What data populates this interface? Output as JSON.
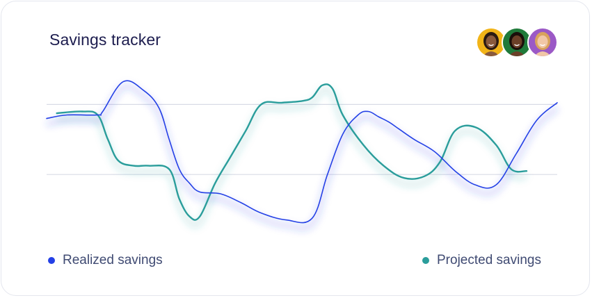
{
  "header": {
    "title": "Savings tracker"
  },
  "avatars": [
    {
      "icon": "avatar-person-1-icon",
      "bg": "#f2b418",
      "skin": "#8a5a3c",
      "hair": "#2b1a12"
    },
    {
      "icon": "avatar-person-2-icon",
      "bg": "#1f7a3a",
      "skin": "#6b4028",
      "hair": "#1a0f0a"
    },
    {
      "icon": "avatar-person-3-icon",
      "bg": "#9b59c6",
      "skin": "#f1c7a6",
      "hair": "#d9a35c"
    }
  ],
  "colors": {
    "realized": "#2440e6",
    "projected": "#2a9d9b",
    "grid": "#d8dbe6"
  },
  "chart_data": {
    "type": "line",
    "title": "Savings tracker",
    "xlabel": "",
    "ylabel": "",
    "grid": true,
    "legend_position": "bottom",
    "xlim": [
      0,
      100
    ],
    "ylim": [
      0,
      100
    ],
    "gridlines_y": [
      40,
      80
    ],
    "series": [
      {
        "name": "Realized savings",
        "x": [
          0,
          4,
          10,
          11,
          15,
          19,
          22,
          24,
          26,
          28,
          30,
          34,
          38,
          42,
          47,
          52,
          55,
          58,
          61,
          63,
          65,
          67,
          69,
          72,
          76,
          80,
          84,
          88,
          92,
          96,
          100
        ],
        "y": [
          72,
          74,
          74,
          76,
          93,
          88,
          78,
          60,
          43,
          35,
          30,
          29,
          24,
          18,
          14,
          15,
          40,
          63,
          74,
          76,
          73,
          70,
          66,
          60,
          53,
          42,
          34,
          34,
          52,
          71,
          81
        ]
      },
      {
        "name": "Projected savings",
        "x": [
          2,
          7,
          10,
          12,
          14,
          17,
          20,
          24,
          26,
          28,
          30,
          33,
          36,
          39,
          42,
          46,
          50,
          52,
          54,
          56,
          58,
          62,
          66,
          70,
          74,
          77,
          80,
          84,
          88,
          91,
          94
        ],
        "y": [
          75,
          76,
          74,
          60,
          48,
          45,
          45,
          43,
          26,
          16,
          16,
          35,
          50,
          65,
          80,
          81,
          82,
          84,
          91,
          89,
          74,
          57,
          45,
          38,
          39,
          47,
          65,
          67,
          57,
          43,
          42
        ]
      }
    ]
  },
  "legend": [
    {
      "label": "Realized savings",
      "color": "#2440e6"
    },
    {
      "label": "Projected savings",
      "color": "#2a9d9b"
    }
  ]
}
